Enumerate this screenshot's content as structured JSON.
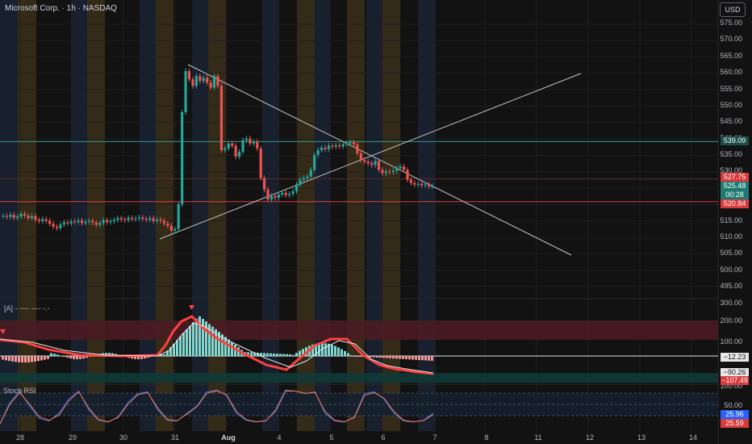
{
  "header": {
    "title": "Microsoft Corp. · 1h · NASDAQ",
    "currency_button": "USD"
  },
  "indicator1": {
    "label": "[A] - ---- ---- -.-"
  },
  "indicator2": {
    "label": "Stoch RSI"
  },
  "price_axis": {
    "ticks": [
      "575.00",
      "570.00",
      "565.00",
      "560.00",
      "555.00",
      "550.00",
      "545.00",
      "540.00",
      "535.00",
      "530.00",
      "515.00",
      "510.00",
      "505.00",
      "500.00",
      "495.00"
    ]
  },
  "osc_axis": {
    "ticks": [
      "300.00",
      "200.00",
      "100.00"
    ]
  },
  "stoch_axis": {
    "ticks": [
      "100.00",
      "50.00"
    ]
  },
  "price_tags": [
    {
      "text": "539.09",
      "bg": "#1a4d4a",
      "key": "resistance"
    },
    {
      "text": "527.75",
      "bg": "#d93a3a",
      "key": "high"
    },
    {
      "text": "525.48",
      "bg": "#1e7a72",
      "key": "last"
    },
    {
      "text": "00:28",
      "bg": "#1e7a72",
      "key": "countdown"
    },
    {
      "text": "520.84",
      "bg": "#d93a3a",
      "key": "support"
    }
  ],
  "osc_tags": [
    {
      "text": "−12.23",
      "bg": "#e8e8e8",
      "fg": "#131722"
    },
    {
      "text": "−90.26",
      "bg": "#e8e8e8",
      "fg": "#131722"
    },
    {
      "text": "−107.49",
      "bg": "#d93a3a",
      "fg": "#ffffff"
    }
  ],
  "stoch_tags": [
    {
      "text": "25.96",
      "bg": "#2962ff",
      "fg": "#ffffff"
    },
    {
      "text": "25.59",
      "bg": "#d93a3a",
      "fg": "#ffffff"
    }
  ],
  "time_axis": {
    "labels": [
      {
        "text": "28",
        "bold": false
      },
      {
        "text": "29",
        "bold": false
      },
      {
        "text": "30",
        "bold": false
      },
      {
        "text": "31",
        "bold": false
      },
      {
        "text": "Aug",
        "bold": true
      },
      {
        "text": "4",
        "bold": false
      },
      {
        "text": "5",
        "bold": false
      },
      {
        "text": "6",
        "bold": false
      },
      {
        "text": "7",
        "bold": false
      },
      {
        "text": "8",
        "bold": false
      },
      {
        "text": "11",
        "bold": false
      },
      {
        "text": "12",
        "bold": false
      },
      {
        "text": "13",
        "bold": false
      },
      {
        "text": "14",
        "bold": false
      }
    ]
  },
  "colors": {
    "up": "#26a69a",
    "down": "#ef5350",
    "resistance_line": "#2e9c94",
    "support_line": "#e23b3b",
    "trendline": "#c8c8c8",
    "session_orange": "#3a2f1a",
    "session_blue": "#1a2233"
  }
}
